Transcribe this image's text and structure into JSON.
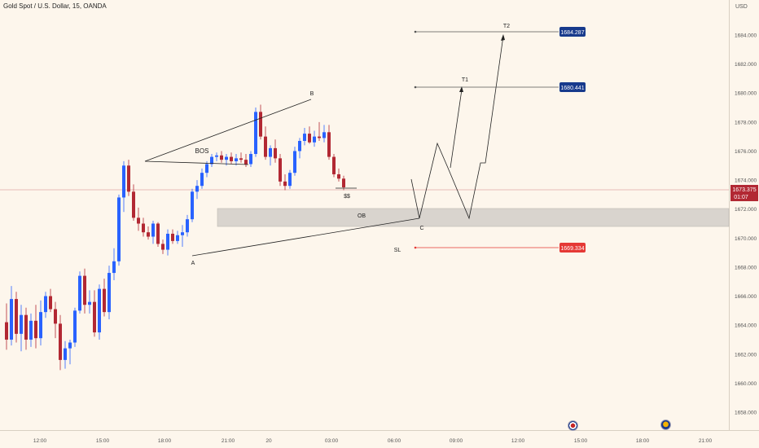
{
  "header": {
    "title": "Gold Spot / U.S. Dollar, 15, OANDA",
    "currency": "USD"
  },
  "price_axis": {
    "ticks": [
      "1684.000",
      "1682.000",
      "1680.000",
      "1678.000",
      "1676.000",
      "1674.000",
      "1672.000",
      "1670.000",
      "1668.000",
      "1666.000",
      "1664.000",
      "1662.000",
      "1660.000",
      "1658.000"
    ],
    "tick_values": [
      1684,
      1682,
      1680,
      1678,
      1676,
      1674,
      1672,
      1670,
      1668,
      1666,
      1664,
      1662,
      1660,
      1658
    ],
    "current_price": "1673.375",
    "countdown": "01:07"
  },
  "time_axis": {
    "labels": [
      "12:00",
      "15:00",
      "18:00",
      "21:00",
      "20",
      "03:00",
      "06:00",
      "09:00",
      "12:00",
      "15:00",
      "18:00",
      "21:00"
    ]
  },
  "annotations": {
    "bos": "BOS",
    "point_a": "A",
    "point_b": "B",
    "point_c": "C",
    "ss": "$$",
    "ob": "OB",
    "sl": "SL",
    "t1": "T1",
    "t2": "T2",
    "t2_price": "1684.287",
    "t1_price": "1680.441",
    "sl_price": "1669.334"
  },
  "icons": {
    "event1": "us-flag-event-icon",
    "event2": "us-flag-event-icon"
  },
  "colors": {
    "background": "#fdf6ec",
    "bull": "#2962ff",
    "bear": "#b22833",
    "target_badge": "#173a8c",
    "stop_badge": "#e53935",
    "price_badge": "#b22833"
  },
  "chart_data": {
    "type": "candlestick",
    "title": "Gold Spot / U.S. Dollar, 15, OANDA",
    "ylim": [
      1657,
      1687
    ],
    "y_ticks": [
      1658,
      1660,
      1662,
      1664,
      1666,
      1668,
      1670,
      1672,
      1674,
      1676,
      1678,
      1680,
      1682,
      1684
    ],
    "candles": [
      [
        1664.2,
        1665.5,
        1662.3,
        1663.0
      ],
      [
        1663.0,
        1666.7,
        1662.6,
        1665.8
      ],
      [
        1665.8,
        1666.3,
        1662.8,
        1663.4
      ],
      [
        1663.4,
        1665.4,
        1662.2,
        1664.7
      ],
      [
        1664.7,
        1665.2,
        1662.3,
        1663.0
      ],
      [
        1663.0,
        1664.8,
        1662.5,
        1664.3
      ],
      [
        1664.3,
        1665.4,
        1662.4,
        1663.1
      ],
      [
        1663.1,
        1665.7,
        1662.6,
        1664.9
      ],
      [
        1664.9,
        1666.3,
        1664.5,
        1666.0
      ],
      [
        1666.0,
        1666.5,
        1664.9,
        1665.1
      ],
      [
        1665.1,
        1665.6,
        1663.1,
        1664.1
      ],
      [
        1664.1,
        1664.7,
        1660.9,
        1661.6
      ],
      [
        1661.6,
        1662.9,
        1661.0,
        1662.4
      ],
      [
        1662.4,
        1663.0,
        1661.3,
        1662.8
      ],
      [
        1662.8,
        1665.2,
        1662.5,
        1665.0
      ],
      [
        1665.0,
        1667.7,
        1664.8,
        1667.4
      ],
      [
        1667.4,
        1667.9,
        1664.8,
        1665.4
      ],
      [
        1665.4,
        1666.4,
        1664.8,
        1665.6
      ],
      [
        1665.6,
        1666.4,
        1663.2,
        1663.5
      ],
      [
        1663.5,
        1666.8,
        1663.0,
        1666.5
      ],
      [
        1666.5,
        1667.2,
        1664.6,
        1664.9
      ],
      [
        1664.9,
        1668.1,
        1664.4,
        1667.6
      ],
      [
        1667.6,
        1669.3,
        1667.1,
        1668.4
      ],
      [
        1668.4,
        1673.0,
        1668.1,
        1672.8
      ],
      [
        1672.8,
        1675.3,
        1671.8,
        1675.0
      ],
      [
        1675.0,
        1675.4,
        1672.9,
        1673.2
      ],
      [
        1673.2,
        1673.7,
        1671.2,
        1671.4
      ],
      [
        1671.4,
        1672.1,
        1670.5,
        1671.0
      ],
      [
        1671.0,
        1671.4,
        1670.1,
        1670.4
      ],
      [
        1670.4,
        1670.8,
        1669.9,
        1670.1
      ],
      [
        1670.1,
        1671.2,
        1669.6,
        1671.0
      ],
      [
        1671.0,
        1671.1,
        1669.4,
        1669.6
      ],
      [
        1669.6,
        1669.9,
        1668.9,
        1669.2
      ],
      [
        1669.2,
        1670.6,
        1668.8,
        1670.3
      ],
      [
        1670.3,
        1670.6,
        1669.6,
        1669.8
      ],
      [
        1669.8,
        1670.5,
        1669.6,
        1670.2
      ],
      [
        1670.2,
        1670.9,
        1669.4,
        1670.4
      ],
      [
        1670.4,
        1671.6,
        1670.1,
        1671.3
      ],
      [
        1671.3,
        1673.4,
        1671.1,
        1673.2
      ],
      [
        1673.2,
        1674.0,
        1672.7,
        1673.6
      ],
      [
        1673.6,
        1674.8,
        1673.4,
        1674.5
      ],
      [
        1674.5,
        1675.3,
        1674.2,
        1675.1
      ],
      [
        1675.1,
        1675.8,
        1674.9,
        1675.6
      ],
      [
        1675.6,
        1675.9,
        1675.3,
        1675.7
      ],
      [
        1675.7,
        1676.0,
        1675.2,
        1675.4
      ],
      [
        1675.4,
        1675.8,
        1675.0,
        1675.6
      ],
      [
        1675.6,
        1675.9,
        1675.1,
        1675.3
      ],
      [
        1675.3,
        1675.8,
        1675.0,
        1675.5
      ],
      [
        1675.5,
        1675.9,
        1675.2,
        1675.4
      ],
      [
        1675.4,
        1675.8,
        1674.9,
        1675.1
      ],
      [
        1675.1,
        1676.0,
        1674.9,
        1675.8
      ],
      [
        1675.8,
        1679.0,
        1675.6,
        1678.7
      ],
      [
        1678.7,
        1679.2,
        1676.8,
        1677.0
      ],
      [
        1677.0,
        1677.7,
        1675.4,
        1675.6
      ],
      [
        1675.6,
        1676.4,
        1675.0,
        1676.2
      ],
      [
        1676.2,
        1676.8,
        1675.2,
        1675.5
      ],
      [
        1675.5,
        1675.8,
        1673.6,
        1673.9
      ],
      [
        1673.9,
        1674.4,
        1673.3,
        1673.6
      ],
      [
        1673.6,
        1674.7,
        1673.4,
        1674.5
      ],
      [
        1674.5,
        1676.3,
        1674.3,
        1676.0
      ],
      [
        1676.0,
        1676.9,
        1675.5,
        1676.7
      ],
      [
        1676.7,
        1677.6,
        1676.4,
        1677.2
      ],
      [
        1677.2,
        1677.7,
        1676.5,
        1676.6
      ],
      [
        1676.6,
        1677.4,
        1676.3,
        1677.0
      ],
      [
        1677.0,
        1678.0,
        1676.7,
        1676.9
      ],
      [
        1676.9,
        1677.8,
        1676.6,
        1677.3
      ],
      [
        1677.3,
        1677.8,
        1675.4,
        1675.6
      ],
      [
        1675.6,
        1675.8,
        1674.2,
        1674.4
      ],
      [
        1674.4,
        1674.8,
        1673.9,
        1674.1
      ],
      [
        1674.1,
        1674.3,
        1673.3,
        1673.5
      ]
    ]
  }
}
